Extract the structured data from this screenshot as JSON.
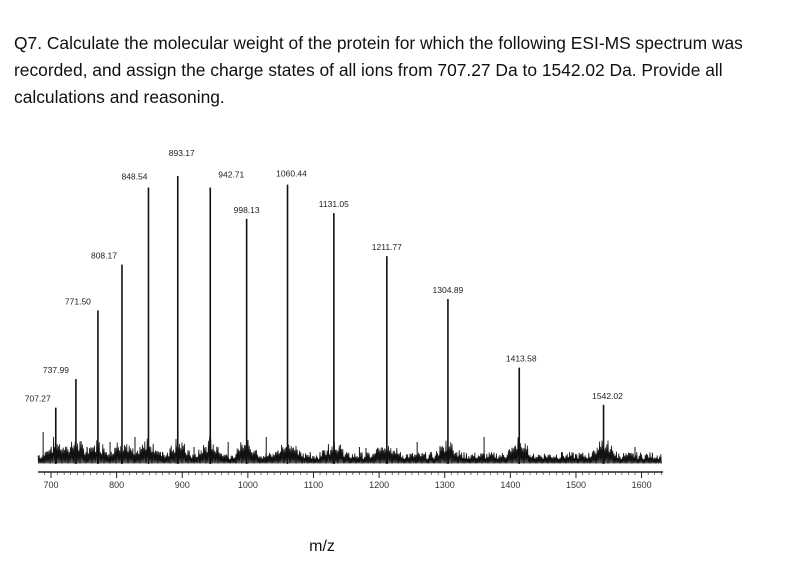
{
  "question": {
    "line1": "Q7. Calculate the molecular weight of the protein for which the following ESI-MS spectrum was",
    "line2": "recorded, and assign the charge states of all ions from 707.27 Da to 1542.02 Da. Provide all",
    "line3": "calculations and reasoning."
  },
  "chart_data": {
    "type": "line",
    "title": "",
    "xlabel": "m/z",
    "ylabel": "",
    "xlim": [
      680,
      1630
    ],
    "ylim": [
      0,
      100
    ],
    "xticks": [
      700,
      800,
      900,
      1000,
      1100,
      1200,
      1300,
      1400,
      1500,
      1600
    ],
    "peaks": [
      {
        "mz": 707.27,
        "intensity": 19,
        "label": "707.27"
      },
      {
        "mz": 737.99,
        "intensity": 29,
        "label": "737.99"
      },
      {
        "mz": 771.5,
        "intensity": 53,
        "label": "771.50"
      },
      {
        "mz": 808.17,
        "intensity": 69,
        "label": "808.17"
      },
      {
        "mz": 848.54,
        "intensity": 96,
        "label": "848.54"
      },
      {
        "mz": 893.17,
        "intensity": 100,
        "label": "893.17"
      },
      {
        "mz": 942.71,
        "intensity": 96,
        "label": "942.71"
      },
      {
        "mz": 998.13,
        "intensity": 85,
        "label": "998.13"
      },
      {
        "mz": 1060.44,
        "intensity": 97,
        "label": "1060.44"
      },
      {
        "mz": 1131.05,
        "intensity": 87,
        "label": "1131.05"
      },
      {
        "mz": 1211.77,
        "intensity": 72,
        "label": "1211.77"
      },
      {
        "mz": 1304.89,
        "intensity": 57,
        "label": "1304.89"
      },
      {
        "mz": 1413.58,
        "intensity": 33,
        "label": "1413.58"
      },
      {
        "mz": 1542.02,
        "intensity": 20,
        "label": "1542.02"
      }
    ],
    "colors": {
      "trace": "#111111",
      "axis": "#222222"
    }
  }
}
